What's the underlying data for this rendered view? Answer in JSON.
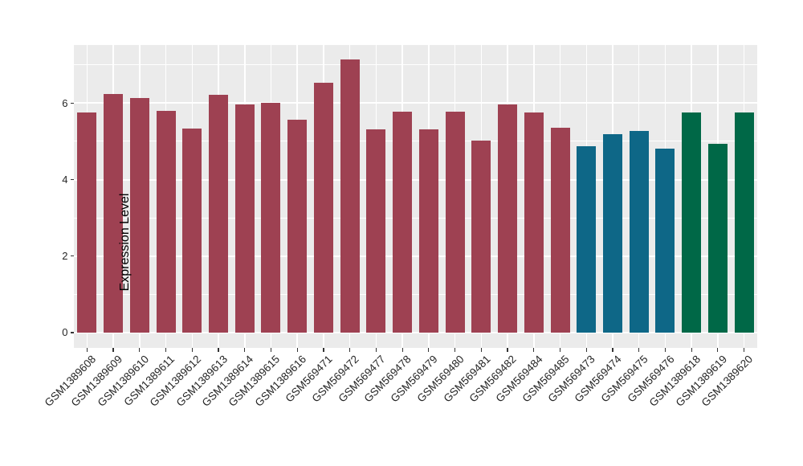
{
  "chart_data": {
    "type": "bar",
    "title": "",
    "xlabel": "",
    "ylabel": "Expression Level",
    "legend_position": "none",
    "grid": true,
    "panel_bg": "#EBEBEB",
    "grid_color": "#FFFFFF",
    "tick_color": "#333333",
    "text_color": "#262626",
    "ylim": [
      -0.4,
      7.52
    ],
    "yticks": [
      0,
      2,
      4,
      6
    ],
    "ytick_labels": [
      "0",
      "2",
      "4",
      "6"
    ],
    "minor_gridlines": [
      1,
      3,
      5,
      7
    ],
    "categories": [
      "GSM1389608",
      "GSM1389609",
      "GSM1389610",
      "GSM1389611",
      "GSM1389612",
      "GSM1389613",
      "GSM1389614",
      "GSM1389615",
      "GSM1389616",
      "GSM569471",
      "GSM569472",
      "GSM569477",
      "GSM569478",
      "GSM569479",
      "GSM569480",
      "GSM569481",
      "GSM569482",
      "GSM569484",
      "GSM569485",
      "GSM569473",
      "GSM569474",
      "GSM569475",
      "GSM569476",
      "GSM1389618",
      "GSM1389619",
      "GSM1389620"
    ],
    "values": [
      5.76,
      6.24,
      6.13,
      5.79,
      5.34,
      6.22,
      5.96,
      6.01,
      5.57,
      6.54,
      7.14,
      5.31,
      5.78,
      5.31,
      5.77,
      5.01,
      5.97,
      5.75,
      5.35,
      4.88,
      5.19,
      5.28,
      4.8,
      5.76,
      4.93,
      5.76
    ],
    "groups": [
      "A",
      "A",
      "A",
      "A",
      "A",
      "A",
      "A",
      "A",
      "A",
      "A",
      "A",
      "A",
      "A",
      "A",
      "A",
      "A",
      "A",
      "A",
      "A",
      "B",
      "B",
      "B",
      "B",
      "C",
      "C",
      "C"
    ],
    "group_colors": {
      "A": "#9E4152",
      "B": "#0E6787",
      "C": "#006847"
    }
  }
}
